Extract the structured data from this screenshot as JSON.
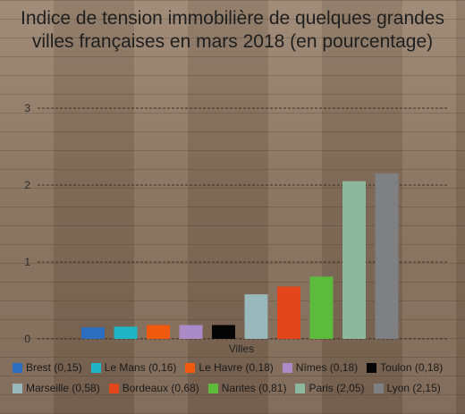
{
  "chart_data": {
    "type": "bar",
    "title": "Indice de tension immobilière de quelques grandes villes françaises en mars 2018 (en pourcentage)",
    "xlabel": "Villes",
    "ylabel": "",
    "ylim": [
      0,
      3
    ],
    "yticks": [
      "0",
      "1",
      "2",
      "3"
    ],
    "grid": true,
    "legend_position": "bottom",
    "series": [
      {
        "name": "Brest (0,15)",
        "value": 0.15,
        "color": "#2a6ebd"
      },
      {
        "name": "Le Mans (0,16)",
        "value": 0.16,
        "color": "#1fb5c4"
      },
      {
        "name": "Le Havre (0,18)",
        "value": 0.18,
        "color": "#f05a0e"
      },
      {
        "name": "Nîmes (0,18)",
        "value": 0.18,
        "color": "#a98bc7"
      },
      {
        "name": "Toulon (0,18)",
        "value": 0.18,
        "color": "#050505"
      },
      {
        "name": "Marseille (0,58)",
        "value": 0.58,
        "color": "#98b8bb"
      },
      {
        "name": "Bordeaux (0,68)",
        "value": 0.68,
        "color": "#e3461b"
      },
      {
        "name": "Nantes (0,81)",
        "value": 0.81,
        "color": "#5cbb3a"
      },
      {
        "name": "Paris (2,05)",
        "value": 2.05,
        "color": "#8db79f"
      },
      {
        "name": "Lyon (2,15)",
        "value": 2.15,
        "color": "#7f8084"
      }
    ]
  }
}
